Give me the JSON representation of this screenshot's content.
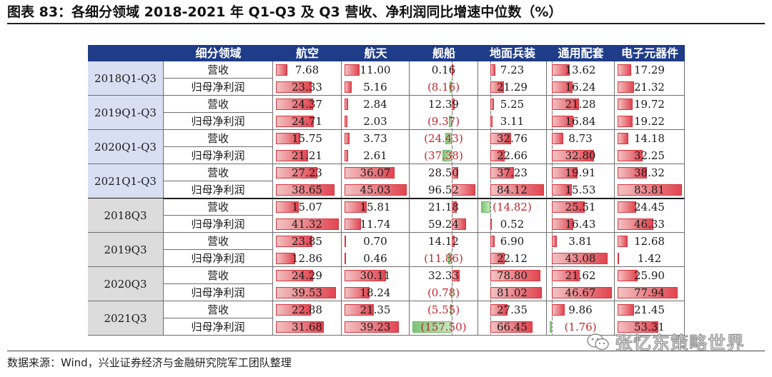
{
  "title": "图表 83：各细分领域 2018-2021 年 Q1-Q3 及 Q3 营收、净利润同比增速中位数（%）",
  "table": {
    "corner_label": "细分领域",
    "columns": [
      "航空",
      "航天",
      "舰船",
      "地面兵装",
      "通用配套",
      "电子元器件"
    ],
    "groups": [
      {
        "label": "2018Q1-Q3",
        "kind": "ytd",
        "rows": [
          {
            "metric": "营收",
            "values": [
              7.68,
              11.0,
              0.16,
              7.23,
              13.62,
              17.29
            ],
            "display": [
              "7.68",
              "11.00",
              "0.16",
              "7.23",
              "13.62",
              "17.29"
            ]
          },
          {
            "metric": "归母净利润",
            "values": [
              23.33,
              5.16,
              -8.16,
              21.29,
              16.24,
              21.32
            ],
            "display": [
              "23.33",
              "5.16",
              "(8.16)",
              "21.29",
              "16.24",
              "21.32"
            ]
          }
        ]
      },
      {
        "label": "2019Q1-Q3",
        "kind": "ytd",
        "rows": [
          {
            "metric": "营收",
            "values": [
              24.37,
              2.84,
              12.39,
              5.25,
              21.28,
              19.72
            ],
            "display": [
              "24.37",
              "2.84",
              "12.39",
              "5.25",
              "21.28",
              "19.72"
            ]
          },
          {
            "metric": "归母净利润",
            "values": [
              24.71,
              2.03,
              -9.37,
              3.11,
              16.84,
              19.22
            ],
            "display": [
              "24.71",
              "2.03",
              "(9.37)",
              "3.11",
              "16.84",
              "19.22"
            ]
          }
        ]
      },
      {
        "label": "2020Q1-Q3",
        "kind": "ytd",
        "rows": [
          {
            "metric": "营收",
            "values": [
              15.75,
              3.73,
              -24.43,
              32.76,
              8.73,
              14.18
            ],
            "display": [
              "15.75",
              "3.73",
              "(24.43)",
              "32.76",
              "8.73",
              "14.18"
            ]
          },
          {
            "metric": "归母净利润",
            "values": [
              21.21,
              2.61,
              -37.38,
              22.66,
              32.8,
              32.25
            ],
            "display": [
              "21.21",
              "2.61",
              "(37.38)",
              "22.66",
              "32.80",
              "32.25"
            ]
          }
        ]
      },
      {
        "label": "2021Q1-Q3",
        "kind": "ytd",
        "rows": [
          {
            "metric": "营收",
            "values": [
              27.23,
              36.07,
              28.5,
              37.23,
              19.91,
              38.32
            ],
            "display": [
              "27.23",
              "36.07",
              "28.50",
              "37.23",
              "19.91",
              "38.32"
            ]
          },
          {
            "metric": "归母净利润",
            "values": [
              38.65,
              45.03,
              96.52,
              84.12,
              15.53,
              83.81
            ],
            "display": [
              "38.65",
              "45.03",
              "96.52",
              "84.12",
              "15.53",
              "83.81"
            ]
          }
        ]
      },
      {
        "label": "2018Q3",
        "kind": "q3",
        "rows": [
          {
            "metric": "营收",
            "values": [
              15.07,
              15.81,
              21.18,
              -14.82,
              25.51,
              24.45
            ],
            "display": [
              "15.07",
              "15.81",
              "21.18",
              "(14.82)",
              "25.51",
              "24.45"
            ]
          },
          {
            "metric": "归母净利润",
            "values": [
              41.32,
              11.74,
              59.24,
              0.52,
              16.43,
              46.33
            ],
            "display": [
              "41.32",
              "11.74",
              "59.24",
              "0.52",
              "16.43",
              "46.33"
            ]
          }
        ]
      },
      {
        "label": "2019Q3",
        "kind": "q3",
        "rows": [
          {
            "metric": "营收",
            "values": [
              23.85,
              0.7,
              14.12,
              6.9,
              3.81,
              12.68
            ],
            "display": [
              "23.85",
              "0.70",
              "14.12",
              "6.90",
              "3.81",
              "12.68"
            ]
          },
          {
            "metric": "归母净利润",
            "values": [
              12.86,
              0.46,
              -11.86,
              22.12,
              43.08,
              1.42
            ],
            "display": [
              "12.86",
              "0.46",
              "(11.86)",
              "22.12",
              "43.08",
              "1.42"
            ]
          }
        ]
      },
      {
        "label": "2020Q3",
        "kind": "q3",
        "rows": [
          {
            "metric": "营收",
            "values": [
              24.29,
              30.11,
              32.33,
              78.8,
              21.62,
              25.9
            ],
            "display": [
              "24.29",
              "30.11",
              "32.33",
              "78.80",
              "21.62",
              "25.90"
            ]
          },
          {
            "metric": "归母净利润",
            "values": [
              39.53,
              18.24,
              -0.78,
              81.02,
              46.67,
              77.94
            ],
            "display": [
              "39.53",
              "18.24",
              "(0.78)",
              "81.02",
              "46.67",
              "77.94"
            ]
          }
        ]
      },
      {
        "label": "2021Q3",
        "kind": "q3",
        "rows": [
          {
            "metric": "营收",
            "values": [
              22.88,
              21.35,
              -5.55,
              27.35,
              9.86,
              21.45
            ],
            "display": [
              "22.88",
              "21.35",
              "(5.55)",
              "27.35",
              "9.86",
              "21.45"
            ]
          },
          {
            "metric": "归母净利润",
            "values": [
              31.68,
              39.23,
              -157.5,
              66.45,
              -1.76,
              53.31
            ],
            "display": [
              "31.68",
              "39.23",
              "(157.50)",
              "66.45",
              "(1.76)",
              "53.31"
            ]
          }
        ]
      }
    ],
    "colors": {
      "header_bg": "#1f3c88",
      "ytd_label_bg": "#d9dff3",
      "q3_label_bg": "#dcdcdc",
      "positive_bar": "#e14550",
      "negative_bar": "#7ec477",
      "negative_text": "#c0242b"
    }
  },
  "source": "数据来源：Wind，兴业证券经济与金融研究院军工团队整理",
  "watermark": {
    "text": "张忆东策略世界",
    "icon": "wechat-logo"
  }
}
